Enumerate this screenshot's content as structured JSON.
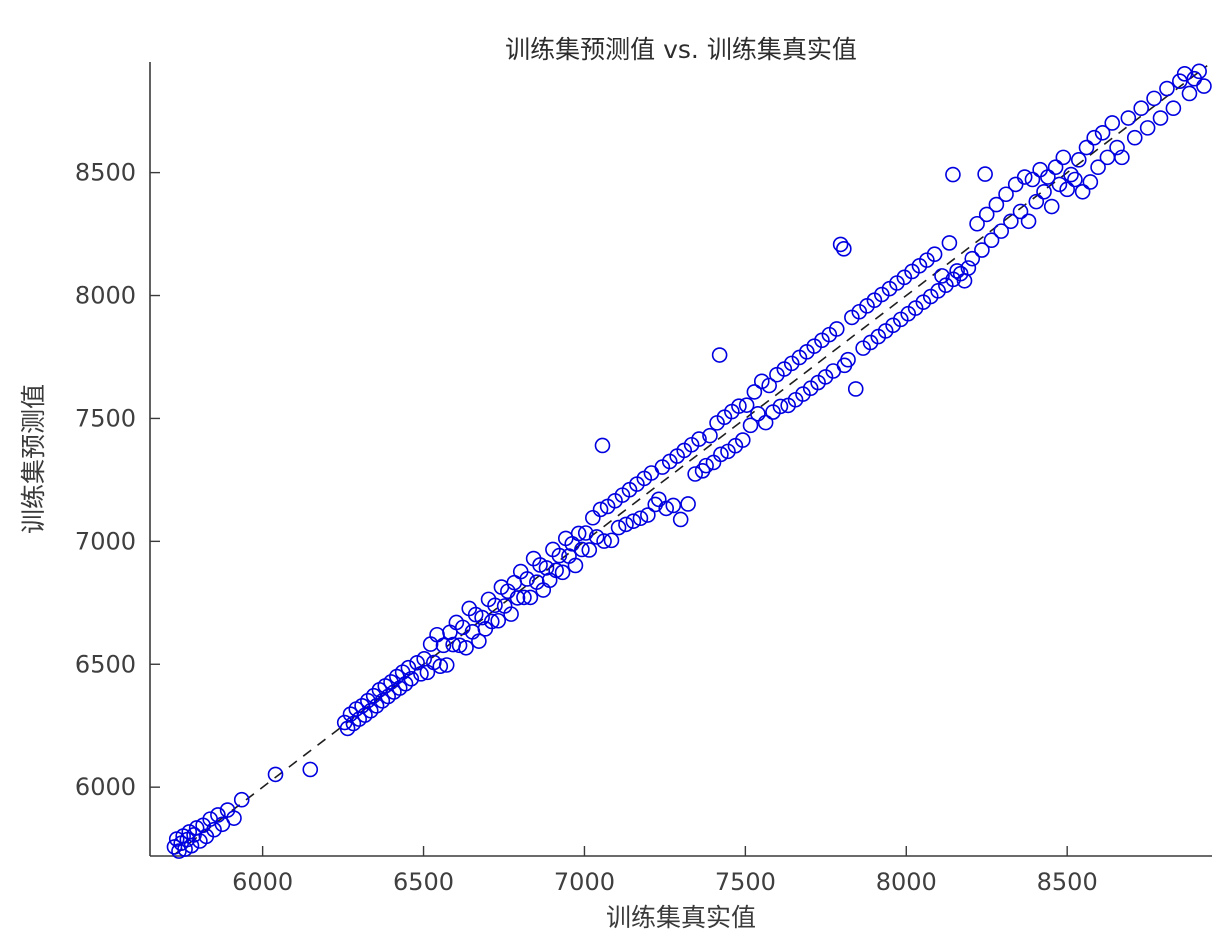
{
  "title": "训练集预测值 vs. 训练集真实值",
  "chart_data": {
    "type": "scatter",
    "title": "训练集预测值 vs. 训练集真实值",
    "xlabel": "训练集真实值",
    "ylabel": "训练集预测值",
    "xlim": [
      5650,
      8950
    ],
    "ylim": [
      5720,
      8950
    ],
    "xticks": [
      6000,
      6500,
      7000,
      7500,
      8000,
      8500
    ],
    "yticks": [
      6000,
      6500,
      7000,
      7500,
      8000,
      8500
    ],
    "grid": false,
    "legend": "none",
    "marker": {
      "shape": "circle",
      "color": "#0000E0",
      "fill": "none",
      "radius": 7,
      "stroke_width": 1.6
    },
    "reference_line": {
      "style": "dashed",
      "color": "#1f1f1f",
      "points": [
        [
          5726,
          5726
        ],
        [
          8935,
          8935
        ]
      ]
    },
    "axis_color": "#3a3a3a",
    "tick_label_color": "#3f3f3f",
    "points": [
      [
        5726,
        5757
      ],
      [
        5733,
        5789
      ],
      [
        5740,
        5740
      ],
      [
        5747,
        5772
      ],
      [
        5753,
        5801
      ],
      [
        5759,
        5748
      ],
      [
        5766,
        5787
      ],
      [
        5772,
        5818
      ],
      [
        5779,
        5762
      ],
      [
        5787,
        5806
      ],
      [
        5795,
        5834
      ],
      [
        5805,
        5781
      ],
      [
        5815,
        5845
      ],
      [
        5825,
        5800
      ],
      [
        5837,
        5870
      ],
      [
        5849,
        5827
      ],
      [
        5861,
        5887
      ],
      [
        5875,
        5849
      ],
      [
        5891,
        5907
      ],
      [
        5911,
        5874
      ],
      [
        5935,
        5949
      ],
      [
        6040,
        6052
      ],
      [
        6148,
        6072
      ],
      [
        6255,
        6263
      ],
      [
        6264,
        6239
      ],
      [
        6273,
        6297
      ],
      [
        6282,
        6259
      ],
      [
        6291,
        6318
      ],
      [
        6300,
        6277
      ],
      [
        6309,
        6331
      ],
      [
        6318,
        6293
      ],
      [
        6327,
        6352
      ],
      [
        6336,
        6311
      ],
      [
        6345,
        6372
      ],
      [
        6354,
        6331
      ],
      [
        6363,
        6396
      ],
      [
        6372,
        6351
      ],
      [
        6381,
        6412
      ],
      [
        6390,
        6369
      ],
      [
        6399,
        6428
      ],
      [
        6408,
        6387
      ],
      [
        6417,
        6450
      ],
      [
        6426,
        6403
      ],
      [
        6435,
        6468
      ],
      [
        6444,
        6421
      ],
      [
        6453,
        6486
      ],
      [
        6462,
        6441
      ],
      [
        6480,
        6506
      ],
      [
        6492,
        6461
      ],
      [
        6502,
        6522
      ],
      [
        6512,
        6467
      ],
      [
        6522,
        6582
      ],
      [
        6532,
        6507
      ],
      [
        6542,
        6620
      ],
      [
        6552,
        6492
      ],
      [
        6562,
        6577
      ],
      [
        6572,
        6497
      ],
      [
        6582,
        6630
      ],
      [
        6592,
        6580
      ],
      [
        6602,
        6670
      ],
      [
        6612,
        6577
      ],
      [
        6622,
        6650
      ],
      [
        6632,
        6567
      ],
      [
        6642,
        6727
      ],
      [
        6652,
        6632
      ],
      [
        6662,
        6702
      ],
      [
        6672,
        6594
      ],
      [
        6682,
        6690
      ],
      [
        6692,
        6644
      ],
      [
        6702,
        6764
      ],
      [
        6712,
        6674
      ],
      [
        6722,
        6740
      ],
      [
        6732,
        6677
      ],
      [
        6742,
        6814
      ],
      [
        6752,
        6737
      ],
      [
        6762,
        6797
      ],
      [
        6772,
        6704
      ],
      [
        6782,
        6832
      ],
      [
        6792,
        6770
      ],
      [
        6802,
        6877
      ],
      [
        6812,
        6772
      ],
      [
        6822,
        6847
      ],
      [
        6832,
        6772
      ],
      [
        6842,
        6930
      ],
      [
        6852,
        6834
      ],
      [
        6862,
        6904
      ],
      [
        6872,
        6802
      ],
      [
        6882,
        6892
      ],
      [
        6892,
        6842
      ],
      [
        6902,
        6967
      ],
      [
        6912,
        6882
      ],
      [
        6922,
        6942
      ],
      [
        6932,
        6874
      ],
      [
        6942,
        7012
      ],
      [
        6952,
        6940
      ],
      [
        6962,
        6990
      ],
      [
        6972,
        6902
      ],
      [
        6982,
        7032
      ],
      [
        6992,
        6967
      ],
      [
        7004,
        7034
      ],
      [
        7015,
        6965
      ],
      [
        7026,
        7096
      ],
      [
        7038,
        7018
      ],
      [
        7050,
        7130
      ],
      [
        7056,
        7390
      ],
      [
        7061,
        7001
      ],
      [
        7072,
        7142
      ],
      [
        7084,
        7004
      ],
      [
        7095,
        7165
      ],
      [
        7106,
        7056
      ],
      [
        7118,
        7188
      ],
      [
        7129,
        7069
      ],
      [
        7140,
        7210
      ],
      [
        7152,
        7082
      ],
      [
        7163,
        7233
      ],
      [
        7174,
        7094
      ],
      [
        7186,
        7256
      ],
      [
        7197,
        7107
      ],
      [
        7208,
        7278
      ],
      [
        7220,
        7150
      ],
      [
        7231,
        7171
      ],
      [
        7242,
        7302
      ],
      [
        7254,
        7134
      ],
      [
        7265,
        7325
      ],
      [
        7276,
        7146
      ],
      [
        7288,
        7347
      ],
      [
        7299,
        7089
      ],
      [
        7310,
        7370
      ],
      [
        7322,
        7152
      ],
      [
        7333,
        7393
      ],
      [
        7344,
        7274
      ],
      [
        7356,
        7416
      ],
      [
        7367,
        7287
      ],
      [
        7378,
        7308
      ],
      [
        7390,
        7430
      ],
      [
        7401,
        7321
      ],
      [
        7412,
        7482
      ],
      [
        7420,
        7758
      ],
      [
        7424,
        7354
      ],
      [
        7435,
        7505
      ],
      [
        7446,
        7366
      ],
      [
        7458,
        7528
      ],
      [
        7469,
        7389
      ],
      [
        7480,
        7550
      ],
      [
        7492,
        7412
      ],
      [
        7504,
        7554
      ],
      [
        7516,
        7472
      ],
      [
        7528,
        7608
      ],
      [
        7539,
        7519
      ],
      [
        7551,
        7651
      ],
      [
        7563,
        7483
      ],
      [
        7574,
        7634
      ],
      [
        7586,
        7526
      ],
      [
        7598,
        7678
      ],
      [
        7609,
        7549
      ],
      [
        7621,
        7701
      ],
      [
        7633,
        7553
      ],
      [
        7644,
        7724
      ],
      [
        7656,
        7576
      ],
      [
        7668,
        7748
      ],
      [
        7679,
        7599
      ],
      [
        7691,
        7771
      ],
      [
        7703,
        7623
      ],
      [
        7714,
        7794
      ],
      [
        7726,
        7646
      ],
      [
        7738,
        7818
      ],
      [
        7749,
        7669
      ],
      [
        7761,
        7841
      ],
      [
        7773,
        7693
      ],
      [
        7784,
        7864
      ],
      [
        7796,
        8208
      ],
      [
        7806,
        8190
      ],
      [
        7808,
        7716
      ],
      [
        7819,
        7739
      ],
      [
        7831,
        7911
      ],
      [
        7843,
        7620
      ],
      [
        7854,
        7934
      ],
      [
        7866,
        7786
      ],
      [
        7878,
        7958
      ],
      [
        7889,
        7809
      ],
      [
        7901,
        7981
      ],
      [
        7913,
        7833
      ],
      [
        7924,
        8004
      ],
      [
        7936,
        7856
      ],
      [
        7948,
        8028
      ],
      [
        7959,
        7879
      ],
      [
        7971,
        8051
      ],
      [
        7983,
        7903
      ],
      [
        7994,
        8074
      ],
      [
        8006,
        7926
      ],
      [
        8018,
        8098
      ],
      [
        8029,
        7949
      ],
      [
        8041,
        8121
      ],
      [
        8053,
        7973
      ],
      [
        8064,
        8144
      ],
      [
        8076,
        7996
      ],
      [
        8088,
        8168
      ],
      [
        8099,
        8019
      ],
      [
        8111,
        8080
      ],
      [
        8123,
        8042
      ],
      [
        8134,
        8214
      ],
      [
        8145,
        8492
      ],
      [
        8146,
        8066
      ],
      [
        8158,
        8100
      ],
      [
        8169,
        8089
      ],
      [
        8181,
        8060
      ],
      [
        8193,
        8112
      ],
      [
        8205,
        8150
      ],
      [
        8220,
        8292
      ],
      [
        8235,
        8185
      ],
      [
        8245,
        8494
      ],
      [
        8250,
        8330
      ],
      [
        8265,
        8225
      ],
      [
        8280,
        8370
      ],
      [
        8295,
        8262
      ],
      [
        8310,
        8412
      ],
      [
        8325,
        8302
      ],
      [
        8340,
        8452
      ],
      [
        8355,
        8342
      ],
      [
        8368,
        8482
      ],
      [
        8380,
        8302
      ],
      [
        8392,
        8472
      ],
      [
        8404,
        8382
      ],
      [
        8416,
        8512
      ],
      [
        8428,
        8422
      ],
      [
        8440,
        8482
      ],
      [
        8452,
        8362
      ],
      [
        8464,
        8522
      ],
      [
        8476,
        8452
      ],
      [
        8488,
        8562
      ],
      [
        8500,
        8432
      ],
      [
        8512,
        8492
      ],
      [
        8524,
        8472
      ],
      [
        8536,
        8552
      ],
      [
        8548,
        8422
      ],
      [
        8560,
        8602
      ],
      [
        8572,
        8462
      ],
      [
        8584,
        8642
      ],
      [
        8596,
        8522
      ],
      [
        8610,
        8662
      ],
      [
        8625,
        8562
      ],
      [
        8640,
        8702
      ],
      [
        8655,
        8602
      ],
      [
        8670,
        8562
      ],
      [
        8690,
        8722
      ],
      [
        8710,
        8642
      ],
      [
        8730,
        8762
      ],
      [
        8750,
        8682
      ],
      [
        8770,
        8802
      ],
      [
        8790,
        8722
      ],
      [
        8810,
        8842
      ],
      [
        8830,
        8762
      ],
      [
        8850,
        8872
      ],
      [
        8865,
        8902
      ],
      [
        8880,
        8822
      ],
      [
        8895,
        8882
      ],
      [
        8910,
        8912
      ],
      [
        8925,
        8852
      ]
    ]
  }
}
